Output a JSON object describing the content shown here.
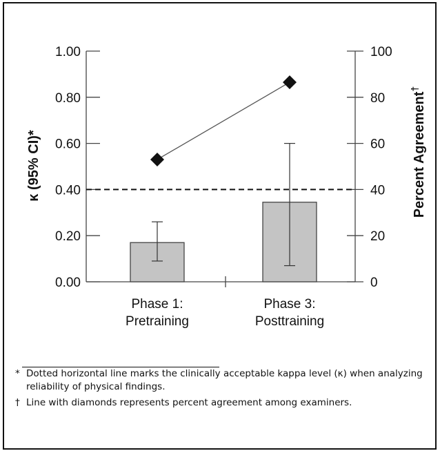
{
  "chart_data": {
    "type": "bar",
    "categories": [
      {
        "line1": "Phase 1:",
        "line2": "Pretraining"
      },
      {
        "line1": "Phase 3:",
        "line2": "Posttraining"
      }
    ],
    "bars": {
      "axis": "left",
      "values": [
        0.17,
        0.345
      ],
      "ci_low": [
        0.09,
        0.07
      ],
      "ci_high": [
        0.26,
        0.6
      ],
      "fill": "#c4c4c4"
    },
    "line": {
      "axis": "right",
      "values": [
        53,
        86.5
      ],
      "marker": "diamond"
    },
    "reference_line": {
      "axis": "left",
      "value": 0.4,
      "style": "dashed"
    },
    "left_axis": {
      "label": "κ (95% CI)*",
      "ylim": [
        0,
        1
      ],
      "ticks": [
        {
          "value": 0.0,
          "label": "0.00"
        },
        {
          "value": 0.2,
          "label": "0.20"
        },
        {
          "value": 0.4,
          "label": "0.40"
        },
        {
          "value": 0.6,
          "label": "0.60"
        },
        {
          "value": 0.8,
          "label": "0.80"
        },
        {
          "value": 1.0,
          "label": "1.00"
        }
      ]
    },
    "right_axis": {
      "label": "Percent Agreement",
      "label_suffix": "†",
      "ylim": [
        0,
        100
      ],
      "ticks": [
        {
          "value": 0,
          "label": "0"
        },
        {
          "value": 20,
          "label": "20"
        },
        {
          "value": 40,
          "label": "40"
        },
        {
          "value": 60,
          "label": "60"
        },
        {
          "value": 80,
          "label": "80"
        },
        {
          "value": 100,
          "label": "100"
        }
      ]
    }
  },
  "footnotes": [
    {
      "mark": "*",
      "text": "Dotted horizontal line marks the clinically acceptable kappa level (κ) when analyzing reliability of physical findings."
    },
    {
      "mark": "†",
      "text": "Line with diamonds represents percent agreement among examiners."
    }
  ]
}
